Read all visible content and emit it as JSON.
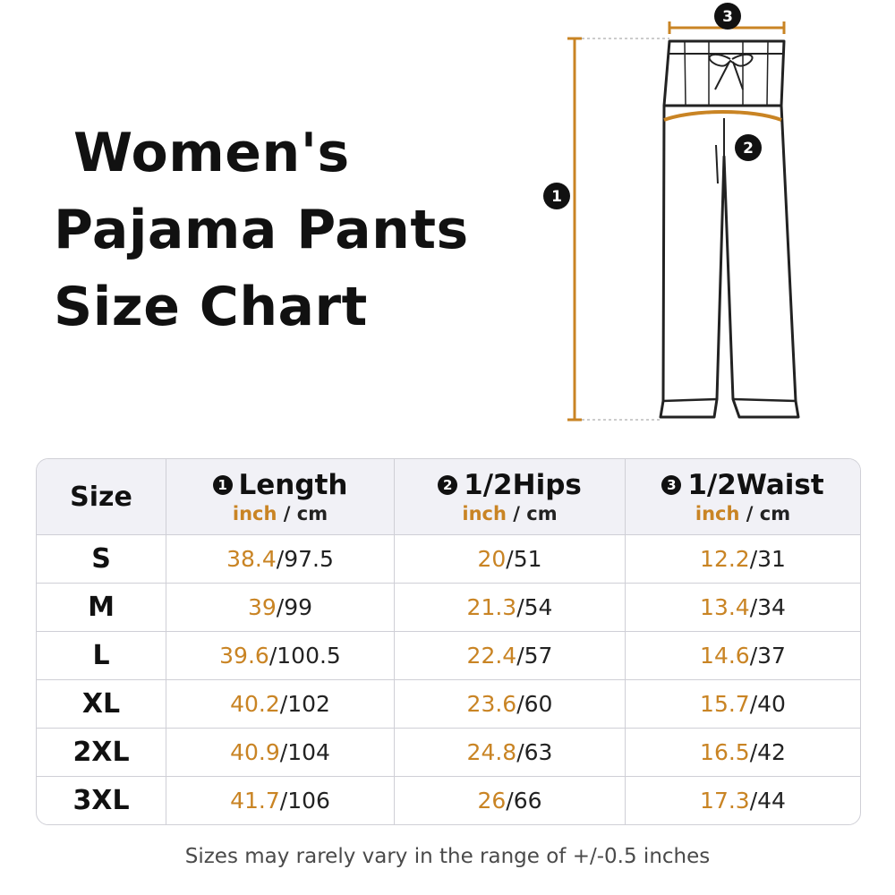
{
  "title": {
    "line1": "Women's",
    "line2": "Pajama Pants",
    "line3": "Size Chart"
  },
  "diagram": {
    "marker1": "1",
    "marker2": "2",
    "marker3": "3"
  },
  "colors": {
    "accent": "#c98424",
    "header_bg": "#f1f1f6",
    "border": "#cfcfd6"
  },
  "table": {
    "header": {
      "size": "Size",
      "length": {
        "num": "1",
        "label": "Length"
      },
      "hips": {
        "num": "2",
        "label": "1/2Hips"
      },
      "waist": {
        "num": "3",
        "label": "1/2Waist"
      },
      "unit_inch": "inch",
      "unit_sep": " / ",
      "unit_cm": "cm"
    },
    "rows": [
      {
        "size": "S",
        "length_in": "38.4",
        "length_cm": "/97.5",
        "hips_in": "20",
        "hips_cm": "/51",
        "waist_in": "12.2",
        "waist_cm": "/31"
      },
      {
        "size": "M",
        "length_in": "39",
        "length_cm": "/99",
        "hips_in": "21.3",
        "hips_cm": "/54",
        "waist_in": "13.4",
        "waist_cm": "/34"
      },
      {
        "size": "L",
        "length_in": "39.6",
        "length_cm": "/100.5",
        "hips_in": "22.4",
        "hips_cm": "/57",
        "waist_in": "14.6",
        "waist_cm": "/37"
      },
      {
        "size": "XL",
        "length_in": "40.2",
        "length_cm": "/102",
        "hips_in": "23.6",
        "hips_cm": "/60",
        "waist_in": "15.7",
        "waist_cm": "/40"
      },
      {
        "size": "2XL",
        "length_in": "40.9",
        "length_cm": "/104",
        "hips_in": "24.8",
        "hips_cm": "/63",
        "waist_in": "16.5",
        "waist_cm": "/42"
      },
      {
        "size": "3XL",
        "length_in": "41.7",
        "length_cm": "/106",
        "hips_in": "26",
        "hips_cm": "/66",
        "waist_in": "17.3",
        "waist_cm": "/44"
      }
    ]
  },
  "note": "Sizes may rarely vary in the range of +/-0.5 inches"
}
